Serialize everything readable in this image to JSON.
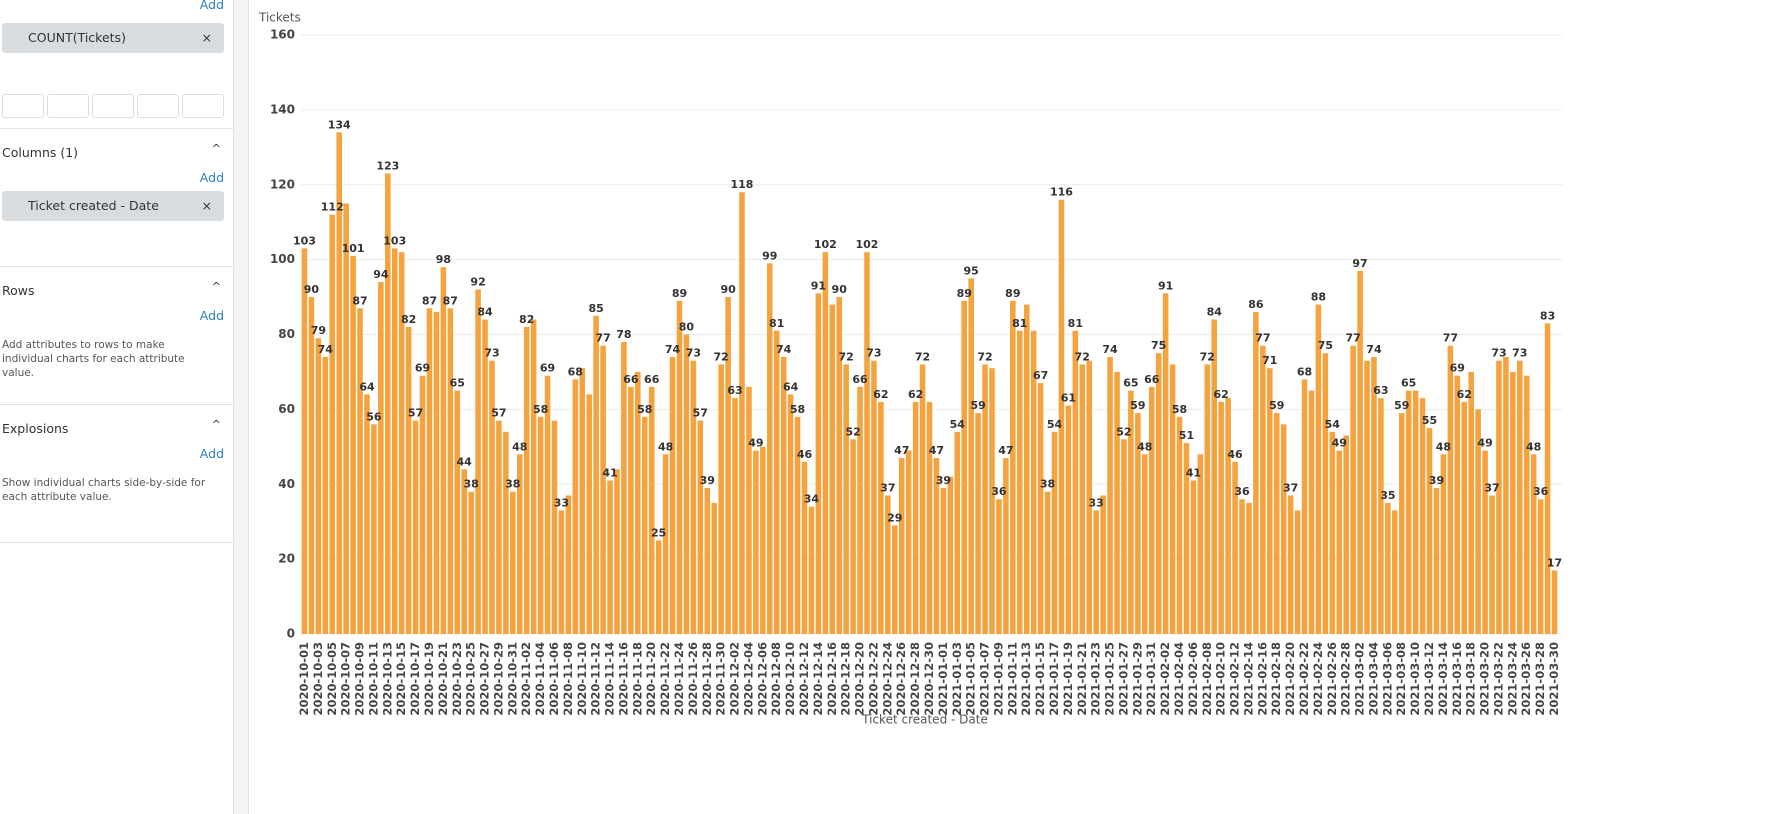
{
  "sidebar": {
    "metrics_add": "Add",
    "metric_pill": "COUNT(Tickets)",
    "remove": "×",
    "columns_title": "Columns (1)",
    "columns_add": "Add",
    "column_pill": "Ticket created - Date",
    "rows_title": "Rows",
    "rows_add": "Add",
    "rows_hint": "Add attributes to rows to make individual charts for each attribute value.",
    "explosions_title": "Explosions",
    "explosions_add": "Add",
    "explosions_hint": "Show individual charts side-by-side for each attribute value."
  },
  "chart_data": {
    "type": "bar",
    "y_label": "Tickets",
    "x_label": "Ticket created - Date",
    "color": "#f5a33e",
    "grid": true,
    "ylim": [
      0,
      160
    ],
    "yticks": [
      0,
      20,
      40,
      60,
      80,
      100,
      120,
      140,
      160
    ],
    "categories": [
      "2020-10-01",
      null,
      "2020-10-03",
      null,
      "2020-10-05",
      null,
      "2020-10-07",
      null,
      "2020-10-09",
      null,
      "2020-10-11",
      null,
      "2020-10-13",
      null,
      "2020-10-15",
      null,
      "2020-10-17",
      null,
      "2020-10-19",
      null,
      "2020-10-21",
      null,
      "2020-10-23",
      null,
      "2020-10-25",
      null,
      "2020-10-27",
      null,
      "2020-10-29",
      null,
      "2020-10-31",
      null,
      "2020-11-02",
      null,
      "2020-11-04",
      null,
      "2020-11-06",
      null,
      "2020-11-08",
      null,
      "2020-11-10",
      null,
      "2020-11-12",
      null,
      "2020-11-14",
      null,
      "2020-11-16",
      null,
      "2020-11-18",
      null,
      "2020-11-20",
      null,
      "2020-11-22",
      null,
      "2020-11-24",
      null,
      "2020-11-26",
      null,
      "2020-11-28",
      null,
      "2020-11-30",
      null,
      "2020-12-02",
      null,
      "2020-12-04",
      null,
      "2020-12-06",
      null,
      "2020-12-08",
      null,
      "2020-12-10",
      null,
      "2020-12-12",
      null,
      "2020-12-14",
      null,
      "2020-12-16",
      null,
      "2020-12-18",
      null,
      "2020-12-20",
      null,
      "2020-12-22",
      null,
      "2020-12-24",
      null,
      "2020-12-26",
      null,
      "2020-12-28",
      null,
      "2020-12-30",
      null,
      "2021-01-01",
      null,
      "2021-01-03",
      null,
      "2021-01-05",
      null,
      "2021-01-07",
      null,
      "2021-01-09",
      null,
      "2021-01-11",
      null,
      "2021-01-13",
      null,
      "2021-01-15",
      null,
      "2021-01-17",
      null,
      "2021-01-19",
      null,
      "2021-01-21",
      null,
      "2021-01-23",
      null,
      "2021-01-25",
      null,
      "2021-01-27",
      null,
      "2021-01-29",
      null,
      "2021-01-31",
      null,
      "2021-02-02",
      null,
      "2021-02-04",
      null,
      "2021-02-06",
      null,
      "2021-02-08",
      null,
      "2021-02-10",
      null,
      "2021-02-12",
      null,
      "2021-02-14",
      null,
      "2021-02-16",
      null,
      "2021-02-18",
      null,
      "2021-02-20",
      null,
      "2021-02-22",
      null,
      "2021-02-24",
      null,
      "2021-02-26",
      null,
      "2021-02-28",
      null,
      "2021-03-02",
      null,
      "2021-03-04",
      null,
      "2021-03-06",
      null,
      "2021-03-08",
      null,
      "2021-03-10",
      null,
      "2021-03-12",
      null,
      "2021-03-14",
      null,
      "2021-03-16",
      null,
      "2021-03-18",
      null,
      "2021-03-20",
      null,
      "2021-03-22",
      null,
      "2021-03-24",
      null,
      "2021-03-26",
      null,
      "2021-03-28",
      null,
      "2021-03-30"
    ],
    "values": [
      103,
      90,
      79,
      74,
      112,
      134,
      115,
      101,
      87,
      64,
      56,
      94,
      123,
      103,
      102,
      82,
      57,
      69,
      87,
      86,
      98,
      87,
      65,
      44,
      38,
      92,
      84,
      73,
      57,
      54,
      38,
      48,
      82,
      84,
      58,
      69,
      57,
      33,
      37,
      68,
      71,
      64,
      85,
      77,
      41,
      44,
      78,
      66,
      70,
      58,
      66,
      25,
      48,
      74,
      89,
      80,
      73,
      57,
      39,
      35,
      72,
      90,
      63,
      118,
      66,
      49,
      50,
      99,
      81,
      74,
      64,
      58,
      46,
      34,
      91,
      102,
      88,
      90,
      72,
      52,
      66,
      102,
      73,
      62,
      37,
      29,
      47,
      49,
      62,
      72,
      62,
      47,
      39,
      42,
      54,
      89,
      95,
      59,
      72,
      71,
      36,
      47,
      89,
      81,
      88,
      81,
      67,
      38,
      54,
      116,
      61,
      81,
      72,
      73,
      33,
      37,
      74,
      70,
      52,
      65,
      59,
      48,
      66,
      75,
      91,
      72,
      58,
      51,
      41,
      48,
      72,
      84,
      62,
      63,
      46,
      36,
      35,
      86,
      77,
      71,
      59,
      56,
      37,
      33,
      68,
      65,
      88,
      75,
      54,
      49,
      53,
      77,
      97,
      73,
      74,
      63,
      35,
      33,
      59,
      65,
      65,
      63,
      55,
      39,
      48,
      77,
      69,
      62,
      70,
      60,
      49,
      37,
      73,
      74,
      70,
      73,
      69,
      48,
      36,
      83,
      17
    ],
    "value_labels": [
      "103",
      "90",
      "79",
      "74",
      "112",
      "134",
      null,
      "101",
      "87",
      "64",
      "56",
      "94",
      "123",
      "103",
      null,
      "82",
      "57",
      "69",
      "87",
      null,
      "98",
      "87",
      "65",
      "44",
      "38",
      "92",
      "84",
      "73",
      "57",
      null,
      "38",
      "48",
      "82",
      null,
      "58",
      "69",
      null,
      "33",
      null,
      "68",
      null,
      null,
      "85",
      "77",
      "41",
      null,
      "78",
      "66",
      null,
      "58",
      "66",
      "25",
      "48",
      "74",
      "89",
      "80",
      "73",
      "57",
      "39",
      null,
      "72",
      "90",
      "63",
      "118",
      null,
      "49",
      null,
      "99",
      "81",
      "74",
      "64",
      "58",
      "46",
      "34",
      "91",
      "102",
      null,
      "90",
      "72",
      "52",
      "66",
      "102",
      "73",
      "62",
      "37",
      "29",
      "47",
      null,
      "62",
      "72",
      null,
      "47",
      "39",
      null,
      "54",
      "89",
      "95",
      "59",
      "72",
      null,
      "36",
      "47",
      "89",
      "81",
      null,
      null,
      "67",
      "38",
      "54",
      "116",
      "61",
      "81",
      "72",
      null,
      "33",
      null,
      "74",
      null,
      "52",
      "65",
      "59",
      "48",
      "66",
      "75",
      "91",
      null,
      "58",
      "51",
      "41",
      null,
      "72",
      "84",
      "62",
      null,
      "46",
      "36",
      null,
      "86",
      "77",
      "71",
      "59",
      null,
      "37",
      null,
      "68",
      null,
      "88",
      "75",
      "54",
      "49",
      null,
      "77",
      "97",
      null,
      "74",
      "63",
      "35",
      null,
      "59",
      "65",
      null,
      null,
      "55",
      "39",
      "48",
      "77",
      "69",
      "62",
      null,
      null,
      "49",
      "37",
      "73",
      null,
      null,
      "73",
      null,
      "48",
      "36",
      "83",
      "17"
    ]
  }
}
